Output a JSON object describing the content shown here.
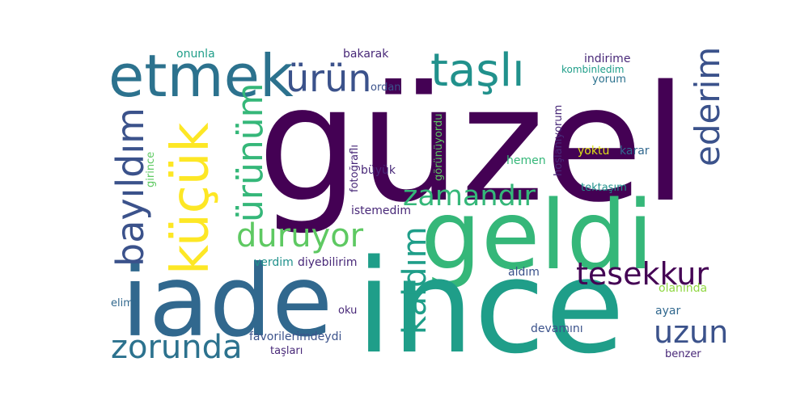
{
  "colors": {
    "background": "#ffffff",
    "dark_purple": "#440154",
    "purple": "#482878",
    "indigo": "#3b528b",
    "blue": "#31688e",
    "steel": "#2c728e",
    "teal": "#21918c",
    "sea": "#1f9e89",
    "green": "#35b779",
    "light_green": "#5ec962",
    "lime": "#90d743",
    "yellow": "#dde318",
    "bright_yellow": "#fde725"
  },
  "words": {
    "guzel": "güzel",
    "ince": "ince",
    "geldi": "geldi",
    "iade": "iade",
    "etmek": "etmek",
    "tasli": "taşlı",
    "urun": "ürün",
    "kucuk": "küçük",
    "bayildim": "bayıldım",
    "urunum": "ürünüm",
    "zamandir": "zamandır",
    "duruyor": "duruyor",
    "ederim": "ederim",
    "tesekkur": "tesekkur",
    "kaldim": "kaldım",
    "zorunda": "zorunda",
    "uzun": "uzun",
    "onunla": "onunla",
    "bakarak": "bakarak",
    "ordan": "ordan",
    "indirime": "indirime",
    "kombinledim": "kombinledim",
    "yorum": "yorum",
    "fotografli": "fotoğraflı",
    "gorunuyordu": "görünüyordu",
    "girince": "girince",
    "hoslaniyorum": "hoşlanıyorum",
    "hemen": "hemen",
    "yoktu": "yoktu",
    "karar": "karar",
    "buyuk": "büyük",
    "tektasim": "tektaşım",
    "istemedim": "istemedim",
    "verdim": "verdim",
    "diyebilirim": "diyebilirim",
    "aldim": "aldım",
    "olaninda": "olanında",
    "elime": "elime",
    "oku": "oku",
    "ayar": "ayar",
    "favorilerimdeydi": "favorilerimdeydi",
    "devamini": "devamını",
    "taslari": "taşları",
    "benzer": "benzer"
  }
}
